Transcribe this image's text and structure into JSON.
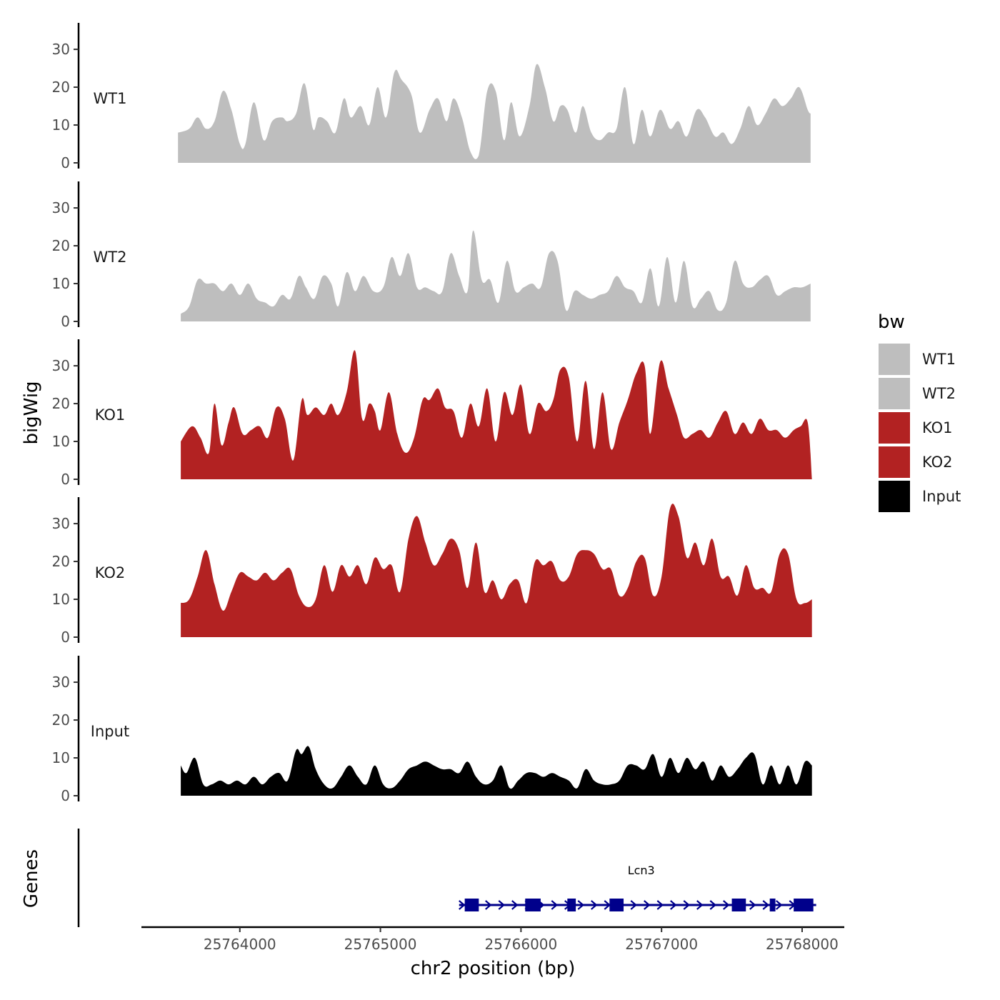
{
  "chart_data": {
    "type": "area",
    "title": "",
    "xlabel": "chr2 position (bp)",
    "ylabel": "bigWig",
    "genes_label": "Genes",
    "xlim": [
      25763300,
      25768300
    ],
    "ylim": [
      0,
      37
    ],
    "x_ticks": [
      {
        "value": 25764000,
        "label": "25764000"
      },
      {
        "value": 25765000,
        "label": "25765000"
      },
      {
        "value": 25766000,
        "label": "25766000"
      },
      {
        "value": 25767000,
        "label": "25767000"
      },
      {
        "value": 25768000,
        "label": "25768000"
      }
    ],
    "y_ticks": [
      {
        "value": 0,
        "label": "0"
      },
      {
        "value": 10,
        "label": "10"
      },
      {
        "value": 20,
        "label": "20"
      },
      {
        "value": 30,
        "label": "30"
      }
    ],
    "legend": {
      "title": "bw",
      "position": "right",
      "entries": [
        {
          "label": "WT1",
          "color": "#bebebe"
        },
        {
          "label": "WT2",
          "color": "#bebebe"
        },
        {
          "label": "KO1",
          "color": "#b22222"
        },
        {
          "label": "KO2",
          "color": "#b22222"
        },
        {
          "label": "Input",
          "color": "#000000"
        }
      ]
    },
    "series": [
      {
        "name": "WT1",
        "color": "#bebebe",
        "x": [
          25763560,
          25763640,
          25763700,
          25763760,
          25763820,
          25763880,
          25763940,
          25764000,
          25764040,
          25764100,
          25764170,
          25764230,
          25764300,
          25764340,
          25764400,
          25764460,
          25764520,
          25764560,
          25764620,
          25764680,
          25764740,
          25764790,
          25764860,
          25764920,
          25764980,
          25765040,
          25765100,
          25765150,
          25765220,
          25765280,
          25765350,
          25765410,
          25765470,
          25765520,
          25765580,
          25765640,
          25765700,
          25765760,
          25765820,
          25765880,
          25765930,
          25765990,
          25766060,
          25766110,
          25766170,
          25766230,
          25766280,
          25766330,
          25766390,
          25766440,
          25766500,
          25766560,
          25766620,
          25766680,
          25766740,
          25766800,
          25766860,
          25766920,
          25766990,
          25767060,
          25767120,
          25767180,
          25767250,
          25767310,
          25767380,
          25767440,
          25767500,
          25767560,
          25767620,
          25767680,
          25767740,
          25767800,
          25767860,
          25767920,
          25767980,
          25768040,
          25768060
        ],
        "values": [
          8,
          9,
          12,
          9,
          11,
          19,
          14,
          5,
          5,
          16,
          6,
          11,
          12,
          11,
          13,
          21,
          9,
          12,
          11,
          8,
          17,
          12,
          15,
          10,
          20,
          12,
          24,
          22,
          18,
          8,
          14,
          17,
          11,
          17,
          12,
          3,
          2,
          19,
          19,
          6,
          16,
          7,
          15,
          26,
          20,
          11,
          15,
          14,
          8,
          15,
          8,
          6,
          8,
          9,
          20,
          5,
          14,
          7,
          14,
          9,
          11,
          7,
          14,
          12,
          7,
          8,
          5,
          9,
          15,
          10,
          13,
          17,
          15,
          17,
          20,
          14,
          13
        ]
      },
      {
        "name": "WT2",
        "color": "#bebebe",
        "x": [
          25763580,
          25763640,
          25763700,
          25763760,
          25763820,
          25763880,
          25763940,
          25764000,
          25764060,
          25764120,
          25764180,
          25764240,
          25764300,
          25764360,
          25764420,
          25764470,
          25764530,
          25764590,
          25764650,
          25764700,
          25764760,
          25764820,
          25764880,
          25764950,
          25765020,
          25765080,
          25765140,
          25765200,
          25765260,
          25765320,
          25765380,
          25765440,
          25765500,
          25765560,
          25765620,
          25765660,
          25765720,
          25765780,
          25765840,
          25765900,
          25765960,
          25766020,
          25766080,
          25766140,
          25766200,
          25766260,
          25766320,
          25766380,
          25766440,
          25766500,
          25766560,
          25766620,
          25766680,
          25766740,
          25766800,
          25766860,
          25766920,
          25766980,
          25767040,
          25767100,
          25767160,
          25767220,
          25767280,
          25767340,
          25767400,
          25767460,
          25767520,
          25767580,
          25767640,
          25767700,
          25767760,
          25767820,
          25767880,
          25767940,
          25768000,
          25768060
        ],
        "values": [
          2,
          4,
          11,
          10,
          10,
          8,
          10,
          7,
          10,
          6,
          5,
          4,
          7,
          6,
          12,
          9,
          6,
          12,
          10,
          4,
          13,
          8,
          12,
          8,
          9,
          17,
          12,
          18,
          9,
          9,
          8,
          8,
          18,
          12,
          8,
          24,
          11,
          11,
          5,
          16,
          8,
          9,
          10,
          9,
          18,
          16,
          3,
          8,
          7,
          6,
          7,
          8,
          12,
          9,
          8,
          5,
          14,
          4,
          17,
          5,
          16,
          4,
          6,
          8,
          3,
          5,
          16,
          10,
          9,
          11,
          12,
          7,
          8,
          9,
          9,
          10
        ]
      },
      {
        "name": "KO1",
        "color": "#b22222",
        "x": [
          25763580,
          25763660,
          25763720,
          25763780,
          25763820,
          25763870,
          25763920,
          25763960,
          25764020,
          25764080,
          25764140,
          25764200,
          25764260,
          25764320,
          25764380,
          25764440,
          25764480,
          25764540,
          25764600,
          25764650,
          25764700,
          25764760,
          25764820,
          25764870,
          25764920,
          25764960,
          25765000,
          25765060,
          25765120,
          25765180,
          25765240,
          25765300,
          25765350,
          25765410,
          25765460,
          25765520,
          25765580,
          25765640,
          25765700,
          25765760,
          25765820,
          25765880,
          25765940,
          25766000,
          25766060,
          25766120,
          25766180,
          25766230,
          25766280,
          25766340,
          25766400,
          25766460,
          25766520,
          25766580,
          25766640,
          25766700,
          25766760,
          25766820,
          25766880,
          25766920,
          25766990,
          25767050,
          25767110,
          25767160,
          25767220,
          25767280,
          25767340,
          25767400,
          25767460,
          25767520,
          25767580,
          25767640,
          25767700,
          25767760,
          25767820,
          25767880,
          25767940,
          25767990,
          25768040,
          25768070
        ],
        "values": [
          10,
          14,
          11,
          7,
          20,
          9,
          15,
          19,
          12,
          13,
          14,
          11,
          19,
          16,
          5,
          21,
          17,
          19,
          17,
          20,
          17,
          23,
          34,
          16,
          20,
          18,
          13,
          23,
          12,
          7,
          11,
          21,
          21,
          24,
          19,
          18,
          11,
          20,
          14,
          24,
          10,
          23,
          17,
          25,
          12,
          20,
          18,
          21,
          29,
          27,
          10,
          26,
          8,
          23,
          8,
          15,
          21,
          28,
          30,
          12,
          31,
          24,
          17,
          11,
          12,
          13,
          11,
          15,
          18,
          12,
          15,
          12,
          16,
          13,
          13,
          11,
          13,
          14,
          15,
          0
        ]
      },
      {
        "name": "KO2",
        "color": "#b22222",
        "x": [
          25763580,
          25763640,
          25763700,
          25763760,
          25763820,
          25763880,
          25763940,
          25764000,
          25764060,
          25764120,
          25764180,
          25764240,
          25764300,
          25764360,
          25764420,
          25764480,
          25764540,
          25764600,
          25764660,
          25764720,
          25764780,
          25764840,
          25764900,
          25764960,
          25765020,
          25765080,
          25765140,
          25765200,
          25765260,
          25765320,
          25765380,
          25765440,
          25765500,
          25765560,
          25765620,
          25765680,
          25765740,
          25765800,
          25765860,
          25765920,
          25765980,
          25766040,
          25766100,
          25766160,
          25766220,
          25766280,
          25766340,
          25766400,
          25766460,
          25766520,
          25766580,
          25766640,
          25766700,
          25766760,
          25766820,
          25766880,
          25766940,
          25767000,
          25767060,
          25767120,
          25767180,
          25767240,
          25767300,
          25767360,
          25767420,
          25767480,
          25767540,
          25767600,
          25767660,
          25767720,
          25767780,
          25767840,
          25767900,
          25767960,
          25768020,
          25768070
        ],
        "values": [
          9,
          10,
          16,
          23,
          14,
          7,
          12,
          17,
          16,
          15,
          17,
          15,
          17,
          18,
          11,
          8,
          10,
          19,
          12,
          19,
          16,
          19,
          14,
          21,
          18,
          19,
          12,
          26,
          32,
          25,
          19,
          22,
          26,
          23,
          13,
          25,
          12,
          15,
          10,
          14,
          15,
          9,
          20,
          19,
          20,
          15,
          16,
          22,
          23,
          22,
          18,
          18,
          11,
          13,
          20,
          21,
          11,
          16,
          34,
          32,
          21,
          25,
          19,
          26,
          16,
          16,
          11,
          19,
          13,
          13,
          12,
          22,
          22,
          10,
          9,
          10
        ]
      },
      {
        "name": "Input",
        "color": "#000000",
        "x": [
          25763580,
          25763620,
          25763680,
          25763740,
          25763800,
          25763860,
          25763920,
          25763980,
          25764040,
          25764100,
          25764160,
          25764220,
          25764280,
          25764340,
          25764400,
          25764440,
          25764490,
          25764540,
          25764600,
          25764660,
          25764720,
          25764780,
          25764840,
          25764900,
          25764960,
          25765020,
          25765080,
          25765140,
          25765200,
          25765260,
          25765320,
          25765380,
          25765440,
          25765500,
          25765560,
          25765620,
          25765680,
          25765740,
          25765800,
          25765860,
          25765920,
          25765980,
          25766040,
          25766100,
          25766160,
          25766220,
          25766280,
          25766340,
          25766400,
          25766460,
          25766520,
          25766580,
          25766640,
          25766700,
          25766760,
          25766820,
          25766880,
          25766940,
          25767000,
          25767060,
          25767120,
          25767180,
          25767240,
          25767300,
          25767360,
          25767420,
          25767480,
          25767540,
          25767600,
          25767660,
          25767720,
          25767780,
          25767840,
          25767900,
          25767960,
          25768020,
          25768070
        ],
        "values": [
          8,
          6,
          10,
          3,
          3,
          4,
          3,
          4,
          3,
          5,
          3,
          5,
          6,
          4,
          12,
          11,
          13,
          7,
          3,
          2,
          5,
          8,
          5,
          3,
          8,
          3,
          2,
          4,
          7,
          8,
          9,
          8,
          7,
          7,
          6,
          9,
          5,
          3,
          4,
          8,
          2,
          4,
          6,
          6,
          5,
          6,
          5,
          4,
          2,
          7,
          4,
          3,
          3,
          4,
          8,
          8,
          7,
          11,
          5,
          10,
          6,
          10,
          7,
          9,
          4,
          8,
          5,
          7,
          10,
          11,
          3,
          8,
          3,
          8,
          3,
          9,
          8
        ]
      }
    ],
    "gene": {
      "name": "Lcn3",
      "strand": "+",
      "start": 25765560,
      "end": 25768100,
      "color": "#00008b",
      "exons": [
        {
          "start": 25765600,
          "end": 25765700
        },
        {
          "start": 25766030,
          "end": 25766140
        },
        {
          "start": 25766330,
          "end": 25766390
        },
        {
          "start": 25766630,
          "end": 25766730
        },
        {
          "start": 25767500,
          "end": 25767600
        },
        {
          "start": 25767770,
          "end": 25767810
        },
        {
          "start": 25767940,
          "end": 25768080
        }
      ]
    }
  }
}
